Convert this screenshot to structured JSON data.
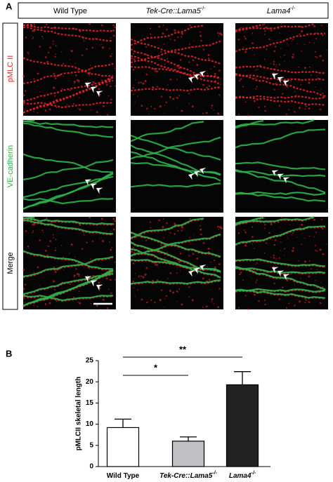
{
  "panel_a": {
    "label": "A",
    "columns": [
      {
        "name": "Wild Type"
      },
      {
        "name": "Tek-Cre::Lama5",
        "sup": "-/-"
      },
      {
        "name": "Lama4",
        "sup": "-/-"
      }
    ],
    "rows": [
      {
        "name": "pMLC II",
        "color": "#e8262b"
      },
      {
        "name": "VE-cadherin",
        "color": "#2db34a"
      },
      {
        "name": "Merge",
        "color": "#000000"
      }
    ]
  },
  "panel_b_label": "B",
  "chart_data": {
    "type": "bar",
    "ylabel": "pMLCII skeletal length",
    "categories": [
      "Wild Type",
      "Tek-Cre::Lama5",
      "Lama4"
    ],
    "category_superscripts": [
      null,
      "-/-",
      "-/-"
    ],
    "values": [
      9.2,
      6.0,
      19.3
    ],
    "errors": [
      2.0,
      1.0,
      3.1
    ],
    "colors": [
      "#ffffff",
      "#c0c0c4",
      "#222222"
    ],
    "ylim": [
      0,
      25
    ],
    "yticks": [
      0,
      5,
      10,
      15,
      20,
      25
    ],
    "annotations": [
      "*",
      "**"
    ]
  }
}
